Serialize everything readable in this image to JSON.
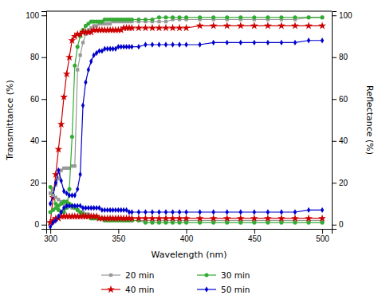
{
  "chart_data": {
    "type": "line",
    "xlabel": "Wavelength (nm)",
    "ylabel": "Transmittance (%)",
    "y2label": "Reflectance (%)",
    "xlim": [
      297,
      507
    ],
    "ylim": [
      -2,
      102
    ],
    "y2lim": [
      -2,
      102
    ],
    "xticks": [
      300,
      350,
      400,
      450,
      500
    ],
    "yticks": [
      0,
      20,
      40,
      60,
      80,
      100
    ],
    "y2ticks": [
      0,
      20,
      40,
      60,
      80,
      100
    ],
    "legend": "bottom",
    "x": [
      300,
      302,
      304,
      306,
      308,
      310,
      312,
      314,
      316,
      318,
      320,
      322,
      324,
      326,
      328,
      330,
      332,
      334,
      336,
      338,
      340,
      342,
      344,
      346,
      348,
      350,
      352,
      354,
      356,
      358,
      360,
      365,
      370,
      375,
      380,
      385,
      390,
      395,
      400,
      410,
      420,
      430,
      440,
      450,
      460,
      470,
      480,
      490,
      500
    ],
    "series": [
      {
        "name": "20 min",
        "color": "#999999",
        "marker": "square",
        "values": [
          15,
          17,
          19,
          22,
          26,
          27,
          27,
          27,
          28,
          28,
          74,
          81,
          87,
          91,
          93,
          94,
          95,
          95,
          96,
          96,
          96,
          96,
          96,
          97,
          97,
          97,
          97,
          97,
          97,
          97,
          97,
          97,
          97,
          97,
          97,
          97,
          98,
          98,
          98,
          98,
          98,
          98,
          98,
          98,
          98,
          98,
          98,
          99,
          99
        ]
      },
      {
        "name": "30 min",
        "color": "#33aa33",
        "marker": "circle",
        "values": [
          18,
          14,
          10,
          7,
          6,
          6,
          8,
          17,
          42,
          76,
          85,
          90,
          93,
          95,
          96,
          97,
          97,
          97,
          97,
          97,
          98,
          98,
          98,
          98,
          98,
          98,
          98,
          98,
          98,
          98,
          98,
          98,
          98,
          98,
          99,
          99,
          99,
          99,
          99,
          99,
          99,
          99,
          99,
          99,
          99,
          99,
          99,
          99,
          99
        ]
      },
      {
        "name": "40 min",
        "color": "#cc0000",
        "marker": "star",
        "values": [
          1,
          13,
          24,
          36,
          48,
          61,
          72,
          80,
          88,
          90,
          91,
          91,
          92,
          92,
          92,
          92,
          93,
          93,
          93,
          93,
          93,
          93,
          93,
          93,
          93,
          93,
          93,
          94,
          94,
          94,
          94,
          94,
          94,
          94,
          94,
          94,
          94,
          94,
          94,
          95,
          95,
          95,
          95,
          95,
          95,
          95,
          95,
          95,
          95
        ]
      },
      {
        "name": "50 min",
        "color": "#0000cc",
        "marker": "diamond",
        "values": [
          10,
          14,
          20,
          26,
          21,
          16,
          15,
          14,
          14,
          14,
          17,
          24,
          57,
          68,
          74,
          78,
          81,
          82,
          83,
          83,
          84,
          84,
          84,
          84,
          84,
          85,
          85,
          85,
          85,
          85,
          85,
          85,
          86,
          86,
          86,
          86,
          86,
          86,
          86,
          86,
          87,
          87,
          87,
          87,
          87,
          87,
          87,
          88,
          88
        ]
      },
      {
        "name": "20 min",
        "color": "#999999",
        "marker": "square",
        "axis": "y2",
        "values": [
          15,
          14,
          13,
          12,
          11,
          10,
          9,
          9,
          8,
          8,
          7,
          6,
          6,
          5,
          5,
          4,
          4,
          4,
          3,
          3,
          3,
          3,
          3,
          3,
          3,
          3,
          3,
          2,
          2,
          2,
          2,
          2,
          2,
          2,
          2,
          2,
          2,
          2,
          2,
          2,
          2,
          2,
          2,
          2,
          2,
          2,
          2,
          2,
          2
        ]
      },
      {
        "name": "30 min",
        "color": "#33aa33",
        "marker": "circle",
        "axis": "y2",
        "values": [
          6,
          7,
          8,
          9,
          10,
          11,
          11,
          10,
          9,
          8,
          7,
          6,
          5,
          4,
          4,
          3,
          3,
          3,
          3,
          3,
          2,
          2,
          2,
          2,
          2,
          2,
          2,
          2,
          2,
          2,
          2,
          2,
          1,
          1,
          1,
          1,
          1,
          1,
          1,
          1,
          1,
          1,
          1,
          1,
          1,
          1,
          1,
          1,
          1
        ]
      },
      {
        "name": "40 min",
        "color": "#cc0000",
        "marker": "star",
        "axis": "y2",
        "values": [
          1,
          2,
          3,
          3,
          4,
          4,
          4,
          4,
          4,
          4,
          4,
          4,
          4,
          4,
          4,
          4,
          4,
          4,
          3,
          3,
          3,
          3,
          3,
          3,
          3,
          3,
          3,
          3,
          3,
          3,
          3,
          3,
          3,
          3,
          3,
          3,
          3,
          3,
          3,
          3,
          3,
          3,
          3,
          3,
          3,
          3,
          3,
          3,
          3
        ]
      },
      {
        "name": "50 min",
        "color": "#0000cc",
        "marker": "diamond",
        "axis": "y2",
        "values": [
          -1,
          1,
          2,
          4,
          6,
          8,
          9,
          9,
          9,
          9,
          9,
          9,
          8,
          8,
          8,
          8,
          8,
          8,
          8,
          7,
          7,
          7,
          7,
          7,
          7,
          7,
          7,
          7,
          7,
          6,
          6,
          6,
          6,
          6,
          6,
          6,
          6,
          6,
          6,
          6,
          6,
          6,
          6,
          6,
          6,
          6,
          6,
          7,
          7
        ]
      }
    ]
  }
}
